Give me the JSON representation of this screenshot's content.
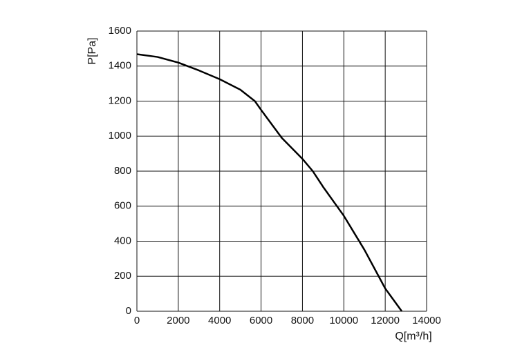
{
  "chart_data": {
    "type": "line",
    "x_label": "Q[m³/h]",
    "y_label": "P[Pa]",
    "series": [
      {
        "name": null,
        "color": "#000000",
        "x": [
          0,
          1000,
          2000,
          3000,
          4000,
          5000,
          5700,
          6000,
          7000,
          8000,
          8500,
          9000,
          10000,
          11000,
          12000,
          12800
        ],
        "values": [
          1468,
          1452,
          1420,
          1375,
          1325,
          1265,
          1200,
          1150,
          990,
          870,
          800,
          710,
          545,
          350,
          130,
          0
        ]
      }
    ],
    "xlim": [
      0,
      14000
    ],
    "xticks": [
      0,
      2000,
      4000,
      6000,
      8000,
      10000,
      12000,
      14000
    ],
    "ylim": [
      0,
      1600
    ],
    "yticks": [
      0,
      200,
      400,
      600,
      800,
      1000,
      1200,
      1400,
      1600
    ],
    "grid": true
  }
}
